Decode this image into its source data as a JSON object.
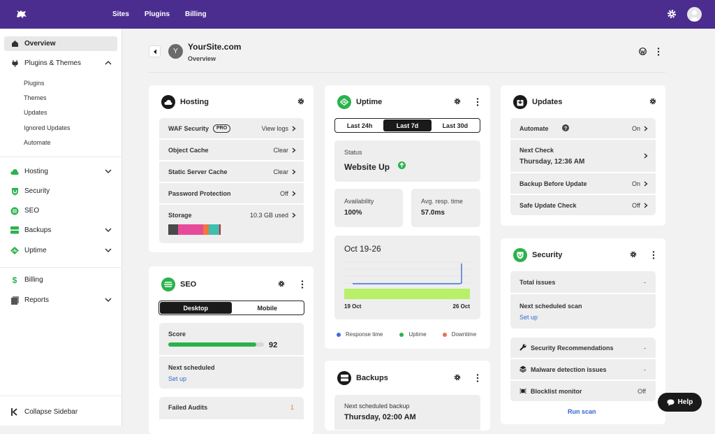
{
  "topnav": {
    "links": [
      "Sites",
      "Plugins",
      "Billing"
    ]
  },
  "sidebar": {
    "overview": "Overview",
    "plugins_themes": "Plugins & Themes",
    "sub": [
      "Plugins",
      "Themes",
      "Updates",
      "Ignored Updates",
      "Automate"
    ],
    "hosting": "Hosting",
    "security": "Security",
    "seo": "SEO",
    "backups": "Backups",
    "uptime": "Uptime",
    "billing": "Billing",
    "reports": "Reports",
    "collapse": "Collapse Sidebar"
  },
  "site": {
    "avatar": "Y",
    "title": "YourSite.com",
    "subtitle": "Overview"
  },
  "hosting": {
    "title": "Hosting",
    "rows": [
      {
        "label": "WAF Security",
        "badge": "PRO",
        "value": "View logs"
      },
      {
        "label": "Object Cache",
        "value": "Clear"
      },
      {
        "label": "Static Server Cache",
        "value": "Clear"
      },
      {
        "label": "Password Protection",
        "value": "Off"
      },
      {
        "label": "Storage",
        "value": "10.3 GB used"
      }
    ],
    "colors": {
      "accent": "#4b2d8f"
    }
  },
  "seo": {
    "title": "SEO",
    "tabs": [
      "Desktop",
      "Mobile"
    ],
    "score_label": "Score",
    "score": "92",
    "score_pct": 92,
    "next_label": "Next scheduled",
    "next_link": "Set up",
    "failed_label": "Failed Audits",
    "failed_value": "1"
  },
  "uptime": {
    "title": "Uptime",
    "tabs": [
      "Last 24h",
      "Last 7d",
      "Last 30d"
    ],
    "status_label": "Status",
    "status_value": "Website Up",
    "availability_label": "Availability",
    "availability_value": "100%",
    "resp_label": "Avg. resp. time",
    "resp_value": "57.0ms",
    "chart_title": "Oct 19-26",
    "x_start": "19 Oct",
    "x_end": "26 Oct",
    "legend": [
      "Response time",
      "Uptime",
      "Downtime"
    ],
    "legend_colors": [
      "#3b6fd8",
      "#2bb24c",
      "#e8704a"
    ]
  },
  "backups": {
    "title": "Backups",
    "next_label": "Next scheduled backup",
    "next_value": "Thursday, 02:00 AM"
  },
  "updates": {
    "title": "Updates",
    "rows": [
      {
        "label": "Automate",
        "value": "On"
      },
      {
        "label": "Next Check",
        "value": "Thursday, 12:36 AM"
      },
      {
        "label": "Backup Before Update",
        "value": "On"
      },
      {
        "label": "Safe Update Check",
        "value": "Off"
      }
    ]
  },
  "security": {
    "title": "Security",
    "total_label": "Total issues",
    "total_value": "-",
    "next_label": "Next scheduled scan",
    "next_link": "Set up",
    "items": [
      {
        "label": "Security Recommendations",
        "value": "-"
      },
      {
        "label": "Malware detection issues",
        "value": "-"
      },
      {
        "label": "Blocklist monitor",
        "value": "Off"
      }
    ],
    "run": "Run scan"
  },
  "help": "Help"
}
